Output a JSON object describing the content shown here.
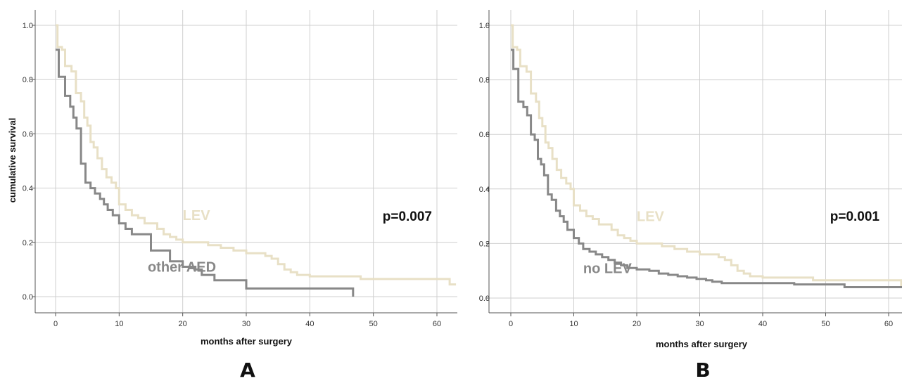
{
  "colors": {
    "lev": "#e8e0c6",
    "comparison": "#888888"
  },
  "chart_data": [
    {
      "type": "line",
      "subtype": "kaplan-meier",
      "panel_label": "A",
      "annotation": "p=0.007",
      "xlabel": "months after surgery",
      "ylabel": "cumulative survival",
      "xlim": [
        -3,
        63
      ],
      "ylim": [
        -0.05,
        1.05
      ],
      "xticks": [
        "0",
        "10",
        "20",
        "30",
        "40",
        "50",
        "60"
      ],
      "yticks": [
        "0.0",
        "0.2",
        "0.4",
        "0.6",
        "0.8",
        "1.0"
      ],
      "grid": true,
      "legend": "none",
      "series": [
        {
          "name": "LEV",
          "label_at": [
            20,
            0.3
          ],
          "color": "#e8e0c6",
          "points": [
            [
              0,
              1.0
            ],
            [
              0.3,
              0.92
            ],
            [
              1,
              0.91
            ],
            [
              1.5,
              0.85
            ],
            [
              2.5,
              0.83
            ],
            [
              3.2,
              0.75
            ],
            [
              4,
              0.72
            ],
            [
              4.5,
              0.66
            ],
            [
              5,
              0.63
            ],
            [
              5.5,
              0.57
            ],
            [
              6,
              0.55
            ],
            [
              6.6,
              0.51
            ],
            [
              7.3,
              0.47
            ],
            [
              8,
              0.44
            ],
            [
              8.8,
              0.42
            ],
            [
              9.5,
              0.4
            ],
            [
              10,
              0.34
            ],
            [
              11,
              0.32
            ],
            [
              12,
              0.3
            ],
            [
              13,
              0.29
            ],
            [
              14,
              0.27
            ],
            [
              16,
              0.25
            ],
            [
              17,
              0.23
            ],
            [
              18,
              0.22
            ],
            [
              19,
              0.21
            ],
            [
              20,
              0.2
            ],
            [
              24,
              0.19
            ],
            [
              26,
              0.18
            ],
            [
              28,
              0.17
            ],
            [
              30,
              0.16
            ],
            [
              33,
              0.15
            ],
            [
              34,
              0.14
            ],
            [
              35,
              0.12
            ],
            [
              36,
              0.1
            ],
            [
              37,
              0.09
            ],
            [
              38,
              0.08
            ],
            [
              40,
              0.075
            ],
            [
              48,
              0.065
            ],
            [
              62,
              0.045
            ],
            [
              63,
              0.045
            ]
          ]
        },
        {
          "name": "other AED",
          "label_at": [
            14.5,
            0.11
          ],
          "color": "#888888",
          "points": [
            [
              0,
              0.91
            ],
            [
              0.5,
              0.81
            ],
            [
              1.5,
              0.74
            ],
            [
              2.3,
              0.7
            ],
            [
              2.8,
              0.66
            ],
            [
              3.3,
              0.62
            ],
            [
              4,
              0.49
            ],
            [
              4.7,
              0.42
            ],
            [
              5.5,
              0.4
            ],
            [
              6.2,
              0.38
            ],
            [
              7,
              0.36
            ],
            [
              7.6,
              0.34
            ],
            [
              8.2,
              0.32
            ],
            [
              9,
              0.3
            ],
            [
              10,
              0.27
            ],
            [
              11,
              0.25
            ],
            [
              12,
              0.23
            ],
            [
              15,
              0.17
            ],
            [
              18,
              0.13
            ],
            [
              20,
              0.11
            ],
            [
              22,
              0.1
            ],
            [
              23,
              0.08
            ],
            [
              25,
              0.06
            ],
            [
              30,
              0.03
            ],
            [
              46.8,
              0.03
            ],
            [
              46.8,
              0.0
            ]
          ]
        }
      ]
    },
    {
      "type": "line",
      "subtype": "kaplan-meier",
      "panel_label": "B",
      "annotation": "p=0.001",
      "xlabel": "months after surgery",
      "ylabel": "",
      "xlim": [
        -3,
        63
      ],
      "ylim": [
        -0.05,
        1.05
      ],
      "xticks": [
        "0",
        "10",
        "20",
        "30",
        "40",
        "50",
        "60"
      ],
      "yticks": [
        "0.0",
        "0.2",
        "0.4",
        "0.6",
        "0.8",
        "1.0"
      ],
      "grid": true,
      "legend": "none",
      "series": [
        {
          "name": "LEV",
          "label_at": [
            20,
            0.3
          ],
          "color": "#e8e0c6",
          "points": [
            [
              0,
              1.0
            ],
            [
              0.3,
              0.92
            ],
            [
              1,
              0.91
            ],
            [
              1.5,
              0.85
            ],
            [
              2.5,
              0.83
            ],
            [
              3.2,
              0.75
            ],
            [
              4,
              0.72
            ],
            [
              4.5,
              0.66
            ],
            [
              5,
              0.63
            ],
            [
              5.5,
              0.57
            ],
            [
              6,
              0.55
            ],
            [
              6.6,
              0.51
            ],
            [
              7.3,
              0.47
            ],
            [
              8,
              0.44
            ],
            [
              8.8,
              0.42
            ],
            [
              9.5,
              0.4
            ],
            [
              10,
              0.34
            ],
            [
              11,
              0.32
            ],
            [
              12,
              0.3
            ],
            [
              13,
              0.29
            ],
            [
              14,
              0.27
            ],
            [
              16,
              0.25
            ],
            [
              17,
              0.23
            ],
            [
              18,
              0.22
            ],
            [
              19,
              0.21
            ],
            [
              20,
              0.2
            ],
            [
              24,
              0.19
            ],
            [
              26,
              0.18
            ],
            [
              28,
              0.17
            ],
            [
              30,
              0.16
            ],
            [
              33,
              0.15
            ],
            [
              34,
              0.14
            ],
            [
              35,
              0.12
            ],
            [
              36,
              0.1
            ],
            [
              37,
              0.09
            ],
            [
              38,
              0.08
            ],
            [
              40,
              0.075
            ],
            [
              48,
              0.065
            ],
            [
              62,
              0.045
            ],
            [
              63,
              0.045
            ]
          ]
        },
        {
          "name": "no LEV",
          "label_at": [
            11.5,
            0.11
          ],
          "color": "#888888",
          "points": [
            [
              0,
              0.91
            ],
            [
              0.4,
              0.84
            ],
            [
              1.2,
              0.72
            ],
            [
              2,
              0.7
            ],
            [
              2.6,
              0.67
            ],
            [
              3.2,
              0.6
            ],
            [
              3.8,
              0.58
            ],
            [
              4.3,
              0.51
            ],
            [
              4.8,
              0.49
            ],
            [
              5.3,
              0.45
            ],
            [
              5.9,
              0.38
            ],
            [
              6.5,
              0.36
            ],
            [
              7.2,
              0.32
            ],
            [
              7.8,
              0.3
            ],
            [
              8.4,
              0.28
            ],
            [
              9,
              0.25
            ],
            [
              10,
              0.22
            ],
            [
              10.8,
              0.2
            ],
            [
              11.5,
              0.18
            ],
            [
              12.5,
              0.17
            ],
            [
              13.5,
              0.16
            ],
            [
              14.5,
              0.15
            ],
            [
              15.5,
              0.14
            ],
            [
              16.5,
              0.13
            ],
            [
              17.5,
              0.12
            ],
            [
              18.5,
              0.11
            ],
            [
              20,
              0.105
            ],
            [
              22,
              0.1
            ],
            [
              23.5,
              0.09
            ],
            [
              25,
              0.085
            ],
            [
              26.5,
              0.08
            ],
            [
              28,
              0.075
            ],
            [
              29.5,
              0.07
            ],
            [
              31,
              0.065
            ],
            [
              32,
              0.06
            ],
            [
              33.5,
              0.055
            ],
            [
              45,
              0.05
            ],
            [
              53,
              0.04
            ],
            [
              63,
              0.04
            ]
          ]
        }
      ]
    }
  ]
}
